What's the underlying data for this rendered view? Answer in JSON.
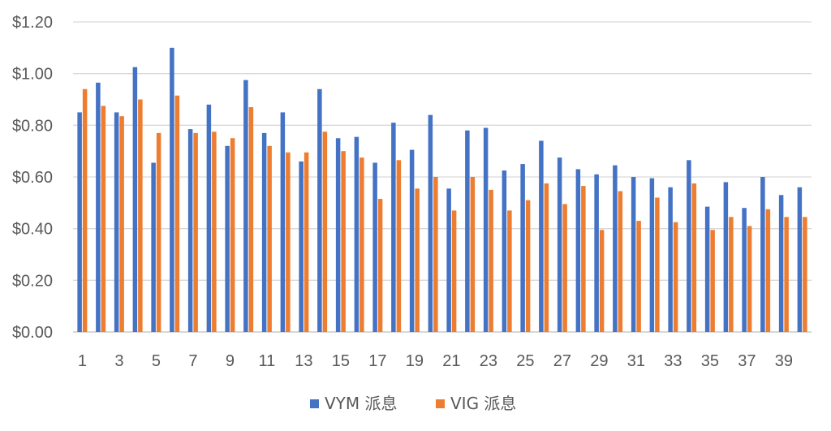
{
  "chart_data": {
    "type": "bar",
    "title": "",
    "xlabel": "",
    "ylabel": "",
    "ylim": [
      0,
      1.2
    ],
    "yticks": [
      "$0.00",
      "$0.20",
      "$0.40",
      "$0.60",
      "$0.80",
      "$1.00",
      "$1.20"
    ],
    "ytick_values": [
      0,
      0.2,
      0.4,
      0.6,
      0.8,
      1.0,
      1.2
    ],
    "grid": true,
    "legend_position": "bottom",
    "categories": [
      "1",
      "2",
      "3",
      "4",
      "5",
      "6",
      "7",
      "8",
      "9",
      "10",
      "11",
      "12",
      "13",
      "14",
      "15",
      "16",
      "17",
      "18",
      "19",
      "20",
      "21",
      "22",
      "23",
      "24",
      "25",
      "26",
      "27",
      "28",
      "29",
      "30",
      "31",
      "32",
      "33",
      "34",
      "35",
      "36",
      "37",
      "38",
      "39",
      "40"
    ],
    "xtick_labels": [
      "1",
      "3",
      "5",
      "7",
      "9",
      "11",
      "13",
      "15",
      "17",
      "19",
      "21",
      "23",
      "25",
      "27",
      "29",
      "31",
      "33",
      "35",
      "37",
      "39"
    ],
    "series": [
      {
        "name": "VYM 派息",
        "color": "#4472C4",
        "values": [
          0.85,
          0.965,
          0.85,
          1.025,
          0.655,
          1.1,
          0.785,
          0.88,
          0.72,
          0.975,
          0.77,
          0.85,
          0.66,
          0.94,
          0.75,
          0.755,
          0.655,
          0.81,
          0.705,
          0.84,
          0.555,
          0.78,
          0.79,
          0.625,
          0.65,
          0.74,
          0.675,
          0.63,
          0.61,
          0.645,
          0.6,
          0.595,
          0.56,
          0.665,
          0.485,
          0.58,
          0.48,
          0.6,
          0.53,
          0.56
        ]
      },
      {
        "name": "VIG 派息",
        "color": "#ED7D31",
        "values": [
          0.94,
          0.875,
          0.835,
          0.9,
          0.77,
          0.915,
          0.77,
          0.775,
          0.75,
          0.87,
          0.72,
          0.695,
          0.695,
          0.775,
          0.7,
          0.675,
          0.515,
          0.665,
          0.555,
          0.6,
          0.47,
          0.6,
          0.55,
          0.47,
          0.51,
          0.575,
          0.495,
          0.565,
          0.395,
          0.545,
          0.43,
          0.52,
          0.425,
          0.575,
          0.395,
          0.445,
          0.41,
          0.475,
          0.445,
          0.445
        ]
      }
    ]
  }
}
